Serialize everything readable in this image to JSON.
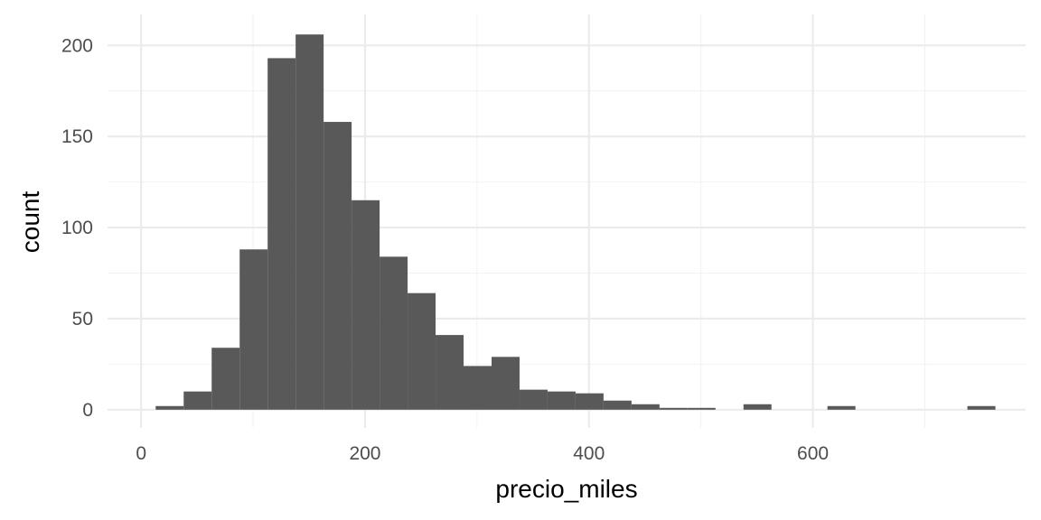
{
  "chart_data": {
    "type": "bar",
    "xlabel": "precio_miles",
    "ylabel": "count",
    "xlim": [
      -30,
      790
    ],
    "ylim": [
      -10,
      217
    ],
    "x_ticks": [
      0,
      200,
      400,
      600
    ],
    "x_tick_labels": [
      "0",
      "200",
      "400",
      "600"
    ],
    "y_ticks": [
      0,
      50,
      100,
      150,
      200
    ],
    "y_tick_labels": [
      "0",
      "50",
      "100",
      "150",
      "200"
    ],
    "grid": true,
    "legend": "none",
    "bin_width": 25,
    "bins": [
      {
        "x0": 13,
        "x1": 38,
        "count": 2
      },
      {
        "x0": 38,
        "x1": 63,
        "count": 10
      },
      {
        "x0": 63,
        "x1": 88,
        "count": 34
      },
      {
        "x0": 88,
        "x1": 113,
        "count": 88
      },
      {
        "x0": 113,
        "x1": 138,
        "count": 193
      },
      {
        "x0": 138,
        "x1": 163,
        "count": 206
      },
      {
        "x0": 163,
        "x1": 188,
        "count": 158
      },
      {
        "x0": 188,
        "x1": 213,
        "count": 115
      },
      {
        "x0": 213,
        "x1": 238,
        "count": 84
      },
      {
        "x0": 238,
        "x1": 263,
        "count": 64
      },
      {
        "x0": 263,
        "x1": 288,
        "count": 41
      },
      {
        "x0": 288,
        "x1": 313,
        "count": 24
      },
      {
        "x0": 313,
        "x1": 338,
        "count": 29
      },
      {
        "x0": 338,
        "x1": 363,
        "count": 11
      },
      {
        "x0": 363,
        "x1": 388,
        "count": 10
      },
      {
        "x0": 388,
        "x1": 413,
        "count": 9
      },
      {
        "x0": 413,
        "x1": 438,
        "count": 5
      },
      {
        "x0": 438,
        "x1": 463,
        "count": 3
      },
      {
        "x0": 463,
        "x1": 488,
        "count": 1
      },
      {
        "x0": 488,
        "x1": 513,
        "count": 1
      },
      {
        "x0": 538,
        "x1": 563,
        "count": 3
      },
      {
        "x0": 613,
        "x1": 638,
        "count": 2
      },
      {
        "x0": 738,
        "x1": 763,
        "count": 2
      }
    ],
    "colors": {
      "bar": "#595959",
      "grid_major": "#ebebeb",
      "grid_minor": "#f2f2f2",
      "tick_text": "#4d4d4d",
      "title_text": "#000000"
    }
  }
}
